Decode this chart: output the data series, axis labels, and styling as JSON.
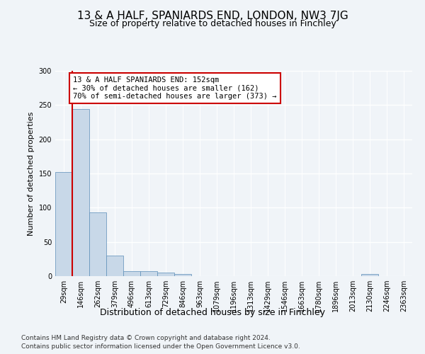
{
  "title": "13 & A HALF, SPANIARDS END, LONDON, NW3 7JG",
  "subtitle": "Size of property relative to detached houses in Finchley",
  "xlabel": "Distribution of detached houses by size in Finchley",
  "ylabel": "Number of detached properties",
  "bar_color": "#c8d8e8",
  "bar_edge_color": "#5b8db8",
  "categories": [
    "29sqm",
    "146sqm",
    "262sqm",
    "379sqm",
    "496sqm",
    "613sqm",
    "729sqm",
    "846sqm",
    "963sqm",
    "1079sqm",
    "1196sqm",
    "1313sqm",
    "1429sqm",
    "1546sqm",
    "1663sqm",
    "1780sqm",
    "1896sqm",
    "2013sqm",
    "2130sqm",
    "2246sqm",
    "2363sqm"
  ],
  "values": [
    152,
    244,
    93,
    30,
    7,
    7,
    5,
    3,
    0,
    0,
    0,
    0,
    0,
    0,
    0,
    0,
    0,
    0,
    3,
    0,
    0
  ],
  "property_line_x": 0.5,
  "property_line_color": "#cc0000",
  "annotation_text": "13 & A HALF SPANIARDS END: 152sqm\n← 30% of detached houses are smaller (162)\n70% of semi-detached houses are larger (373) →",
  "annotation_box_color": "#ffffff",
  "annotation_box_edge_color": "#cc0000",
  "ylim": [
    0,
    300
  ],
  "yticks": [
    0,
    50,
    100,
    150,
    200,
    250,
    300
  ],
  "background_color": "#f0f4f8",
  "plot_background_color": "#f0f4f8",
  "footer_line1": "Contains HM Land Registry data © Crown copyright and database right 2024.",
  "footer_line2": "Contains public sector information licensed under the Open Government Licence v3.0.",
  "grid_color": "#ffffff",
  "title_fontsize": 11,
  "subtitle_fontsize": 9,
  "axis_label_fontsize": 8,
  "tick_fontsize": 7,
  "annotation_fontsize": 7.5,
  "footer_fontsize": 6.5
}
